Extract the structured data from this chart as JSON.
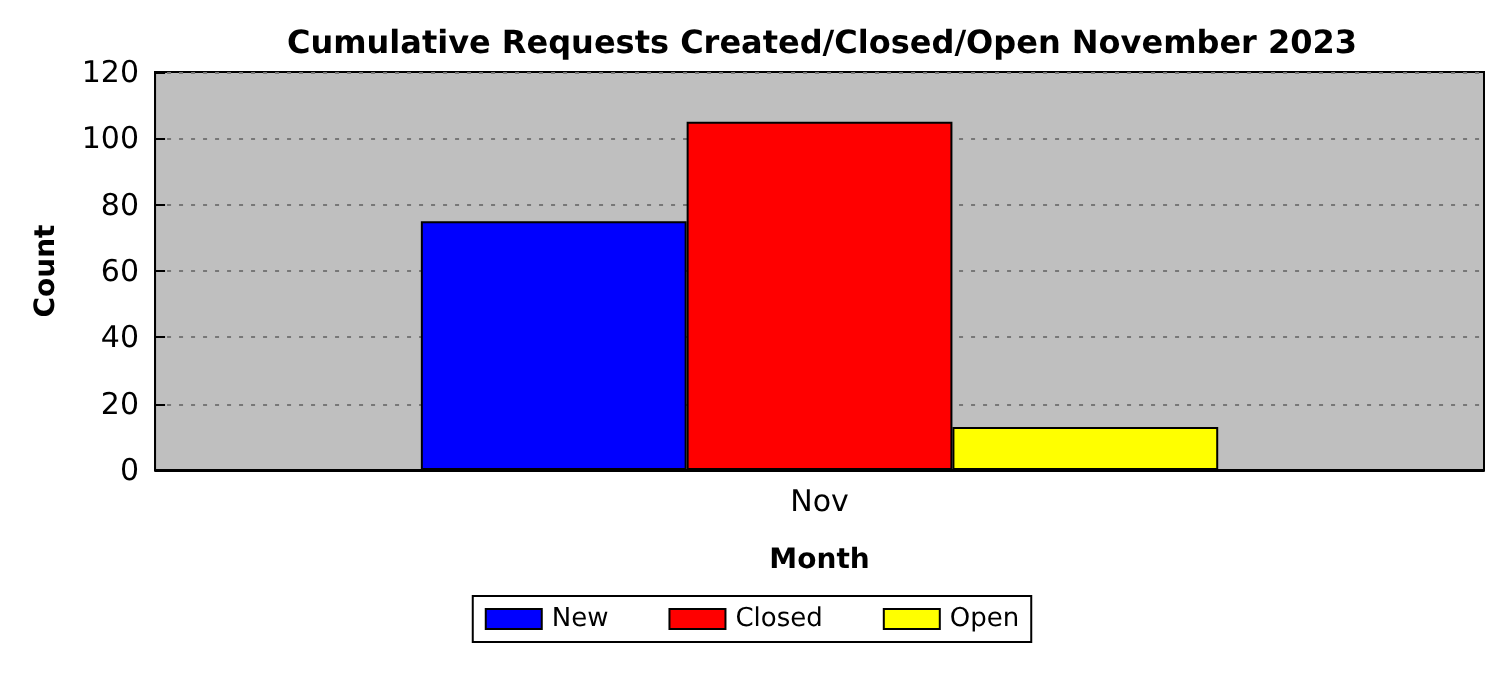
{
  "chart_data": {
    "type": "bar",
    "title": "Cumulative Requests Created/Closed/Open November 2023",
    "xlabel": "Month",
    "ylabel": "Count",
    "categories": [
      "Nov"
    ],
    "series": [
      {
        "name": "New",
        "color": "#0000ff",
        "values": [
          75
        ]
      },
      {
        "name": "Closed",
        "color": "#ff0000",
        "values": [
          105
        ]
      },
      {
        "name": "Open",
        "color": "#ffff00",
        "values": [
          13
        ]
      }
    ],
    "ylim": [
      0,
      120
    ],
    "yticks": [
      0,
      20,
      40,
      60,
      80,
      100,
      120
    ],
    "grid": "y",
    "legend": "bottom"
  }
}
